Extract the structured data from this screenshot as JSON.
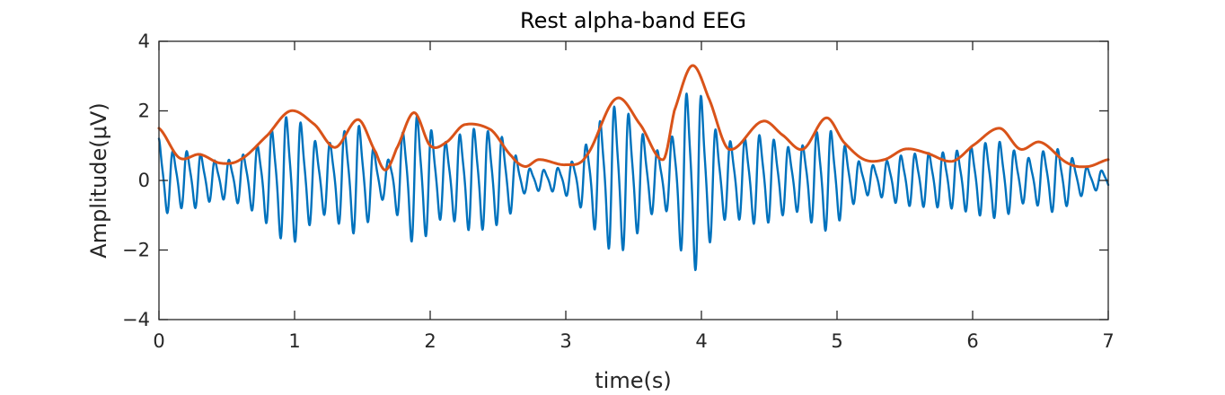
{
  "chart_data": {
    "type": "line",
    "title": "Rest alpha-band EEG",
    "xlabel": "time(s)",
    "ylabel": "Amplitude(μV)",
    "xlim": [
      0,
      7
    ],
    "ylim": [
      -4,
      4
    ],
    "x_ticks": [
      0,
      1,
      2,
      3,
      4,
      5,
      6,
      7
    ],
    "y_ticks": [
      -4,
      -2,
      0,
      2,
      4
    ],
    "x_tick_labels": [
      "0",
      "1",
      "2",
      "3",
      "4",
      "5",
      "6",
      "7"
    ],
    "y_tick_labels": [
      "−4",
      "−2",
      "0",
      "2",
      "4"
    ],
    "grid": false,
    "box": true,
    "series": [
      {
        "color": "#0072BD",
        "kind": "signal",
        "carrier_hz": 9.5,
        "envelope": {
          "x": [
            0,
            0.1,
            0.25,
            0.45,
            0.7,
            0.97,
            1.2,
            1.47,
            1.67,
            1.88,
            2.1,
            2.3,
            2.55,
            2.7,
            3.05,
            3.37,
            3.72,
            3.93,
            4.15,
            4.45,
            4.7,
            4.92,
            5.2,
            5.5,
            5.85,
            6.2,
            6.4,
            6.6,
            6.85,
            7
          ],
          "y": [
            1.3,
            0.9,
            0.9,
            0.6,
            1.0,
            2.0,
            1.1,
            1.7,
            0.6,
            2.0,
            1.2,
            1.6,
            1.3,
            0.4,
            0.6,
            2.3,
            0.9,
            2.9,
            1.3,
            1.4,
            1.0,
            1.6,
            0.5,
            0.8,
            0.9,
            1.2,
            0.7,
            1.0,
            0.4,
            0.3
          ]
        },
        "negative_scale": 0.85
      },
      {
        "color": "#D95319",
        "kind": "envelope",
        "x": [
          0,
          0.15,
          0.3,
          0.45,
          0.6,
          0.8,
          0.97,
          1.15,
          1.3,
          1.47,
          1.6,
          1.67,
          1.75,
          1.88,
          2.0,
          2.12,
          2.25,
          2.45,
          2.6,
          2.7,
          2.8,
          3.0,
          3.15,
          3.37,
          3.55,
          3.72,
          3.8,
          3.93,
          4.05,
          4.2,
          4.45,
          4.6,
          4.75,
          4.92,
          5.05,
          5.2,
          5.35,
          5.5,
          5.65,
          5.85,
          6.0,
          6.2,
          6.35,
          6.5,
          6.7,
          6.85,
          7.0
        ],
        "y": [
          1.5,
          0.65,
          0.75,
          0.5,
          0.6,
          1.3,
          2.0,
          1.6,
          0.95,
          1.75,
          0.8,
          0.3,
          0.9,
          1.95,
          1.0,
          1.1,
          1.6,
          1.45,
          0.7,
          0.4,
          0.6,
          0.45,
          0.7,
          2.35,
          1.6,
          0.6,
          2.0,
          3.3,
          2.4,
          0.9,
          1.7,
          1.3,
          0.9,
          1.8,
          1.1,
          0.6,
          0.6,
          0.9,
          0.8,
          0.55,
          1.0,
          1.5,
          0.9,
          1.1,
          0.5,
          0.4,
          0.6
        ]
      }
    ]
  }
}
